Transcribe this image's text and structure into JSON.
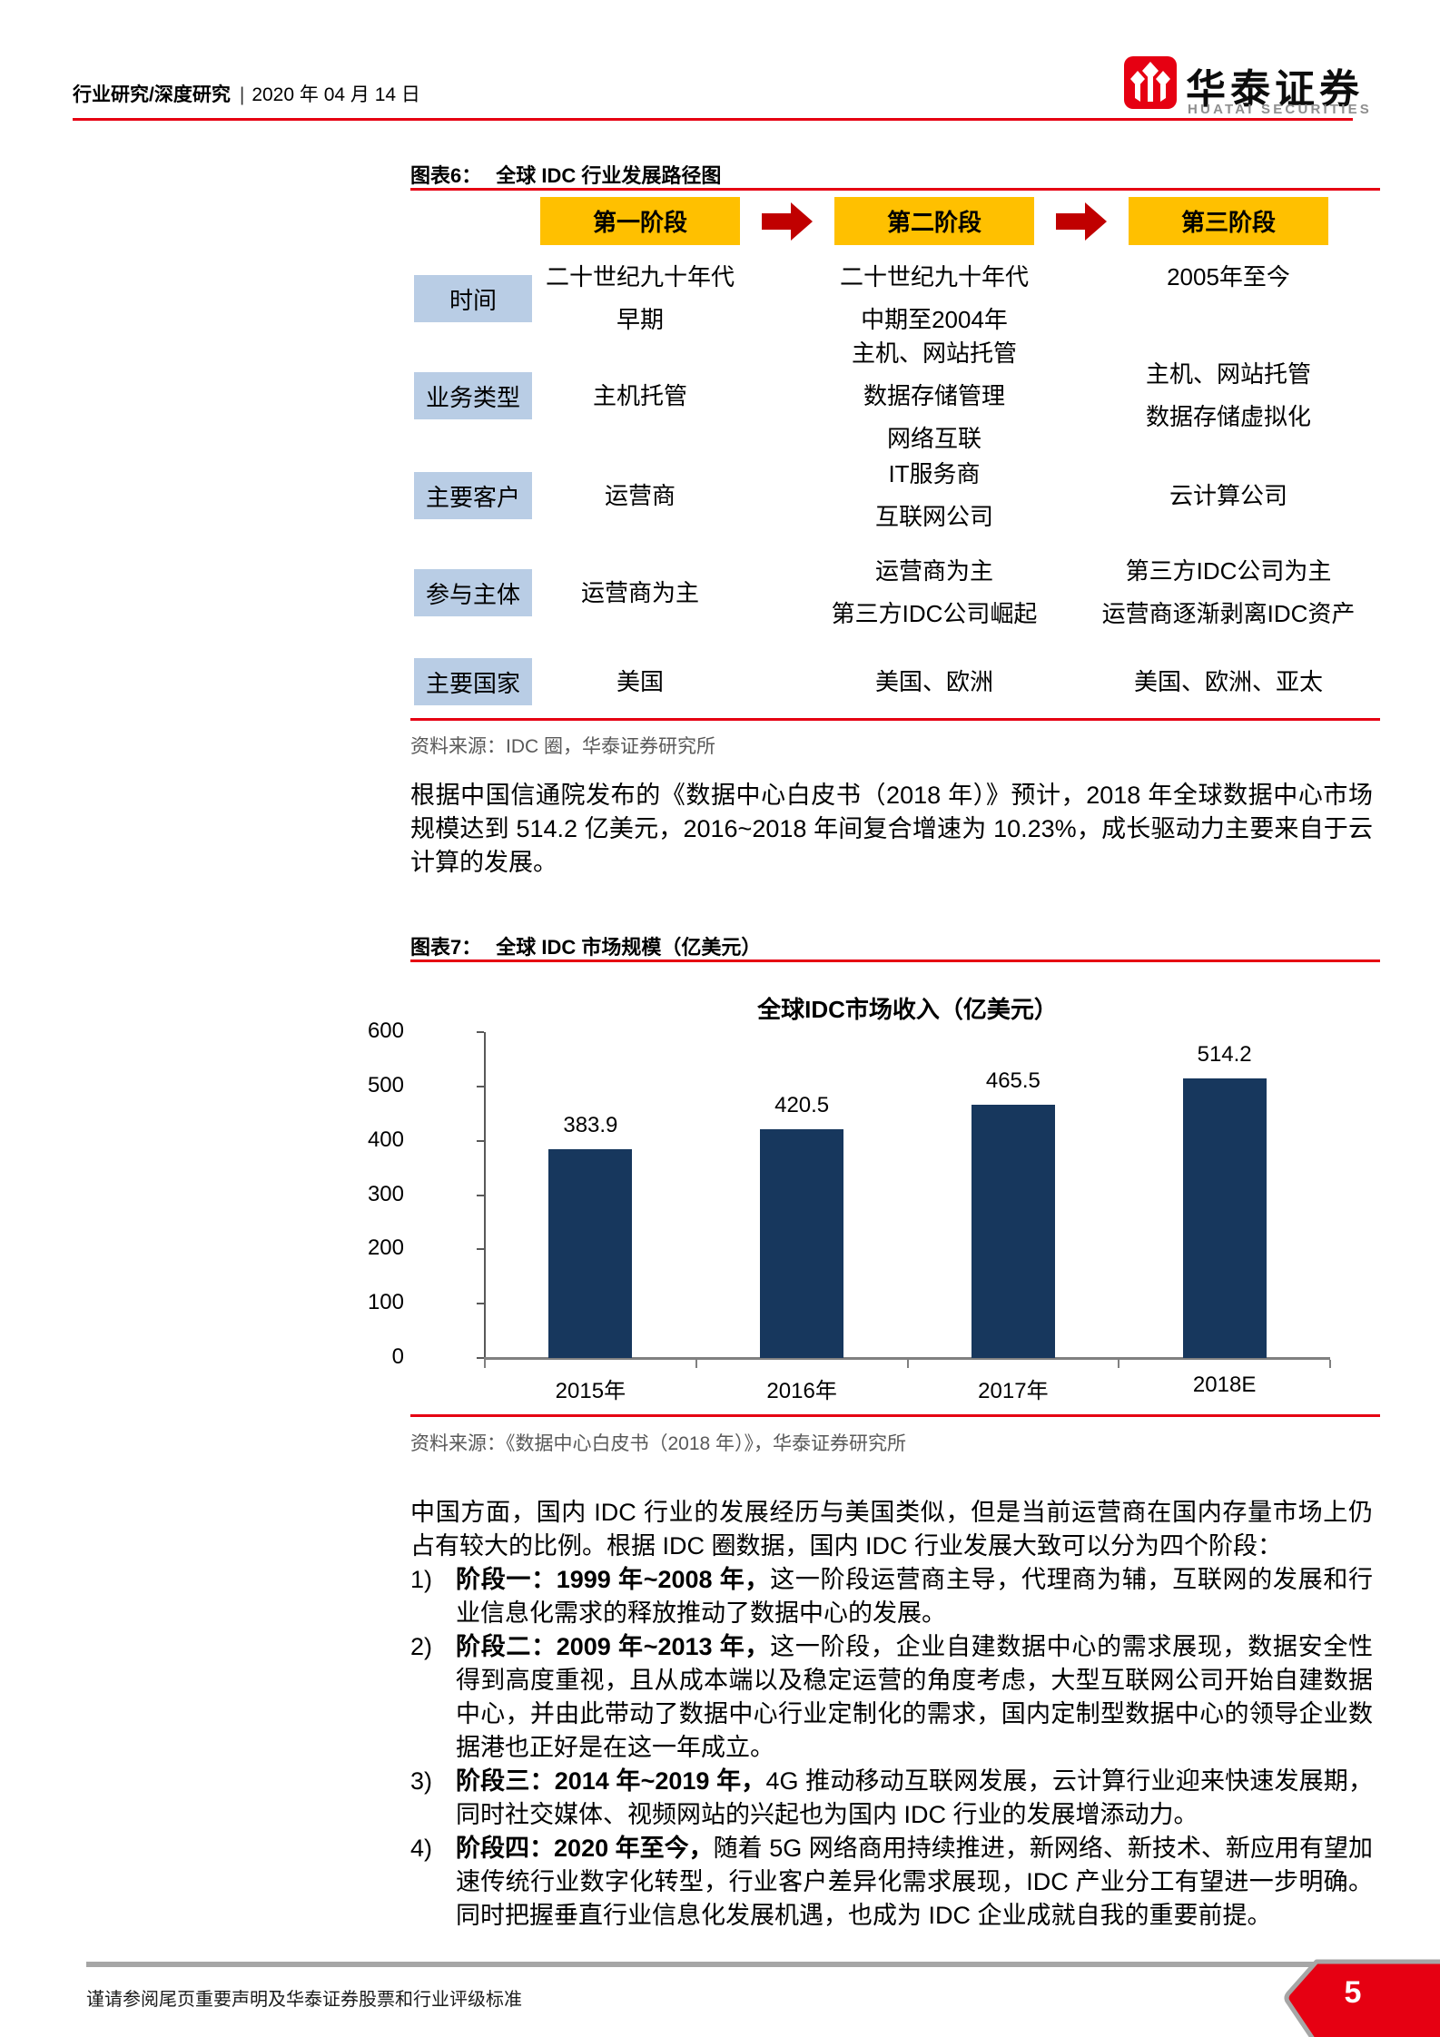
{
  "report": {
    "header": {
      "category": "行业研究/深度研究",
      "divider": "|",
      "date": "2020 年 04 月 14 日",
      "brand_cn": "华泰证券",
      "brand_en": "HUATAI SECURITIES"
    },
    "figure6": {
      "caption_label": "图表6：",
      "caption_title": "全球 IDC 行业发展路径图",
      "stages": [
        "第一阶段",
        "第二阶段",
        "第三阶段"
      ],
      "rows": [
        {
          "label": "时间",
          "cells": [
            [
              "二十世纪九十年代",
              "早期"
            ],
            [
              "二十世纪九十年代",
              "中期至2004年"
            ],
            [
              "2005年至今"
            ]
          ]
        },
        {
          "label": "业务类型",
          "cells": [
            [
              "主机托管"
            ],
            [
              "主机、网站托管",
              "数据存储管理",
              "网络互联"
            ],
            [
              "主机、网站托管",
              "数据存储虚拟化"
            ]
          ]
        },
        {
          "label": "主要客户",
          "cells": [
            [
              "运营商"
            ],
            [
              "IT服务商",
              "互联网公司"
            ],
            [
              "云计算公司"
            ]
          ]
        },
        {
          "label": "参与主体",
          "cells": [
            [
              "运营商为主"
            ],
            [
              "运营商为主",
              "第三方IDC公司崛起"
            ],
            [
              "第三方IDC公司为主",
              "运营商逐渐剥离IDC资产"
            ]
          ]
        },
        {
          "label": "主要国家",
          "cells": [
            [
              "美国"
            ],
            [
              "美国、欧洲"
            ],
            [
              "美国、欧洲、亚太"
            ]
          ]
        }
      ],
      "source": "资料来源：IDC 圈，华泰证券研究所"
    },
    "paragraph1": "根据中国信通院发布的《数据中心白皮书（2018 年）》预计，2018 年全球数据中心市场规模达到 514.2 亿美元，2016~2018 年间复合增速为 10.23%，成长驱动力主要来自于云计算的发展。",
    "figure7": {
      "caption_label": "图表7：",
      "caption_title": "全球 IDC 市场规模（亿美元）",
      "source": "资料来源：《数据中心白皮书（2018 年）》，华泰证券研究所"
    },
    "paragraph2": "中国方面，国内 IDC 行业的发展经历与美国类似，但是当前运营商在国内存量市场上仍占有较大的比例。根据 IDC 圈数据，国内 IDC 行业发展大致可以分为四个阶段：",
    "stages_list": [
      {
        "num": "1)",
        "lead": "阶段一：1999 年~2008 年，",
        "rest": "这一阶段运营商主导，代理商为辅，互联网的发展和行业信息化需求的释放推动了数据中心的发展。"
      },
      {
        "num": "2)",
        "lead": "阶段二：2009 年~2013 年，",
        "rest": "这一阶段，企业自建数据中心的需求展现，数据安全性得到高度重视，且从成本端以及稳定运营的角度考虑，大型互联网公司开始自建数据中心，并由此带动了数据中心行业定制化的需求，国内定制型数据中心的领导企业数据港也正好是在这一年成立。"
      },
      {
        "num": "3)",
        "lead": "阶段三：2014 年~2019 年，",
        "rest": "4G 推动移动互联网发展，云计算行业迎来快速发展期，同时社交媒体、视频网站的兴起也为国内 IDC 行业的发展增添动力。"
      },
      {
        "num": "4)",
        "lead": "阶段四：2020 年至今，",
        "rest": "随着 5G 网络商用持续推进，新网络、新技术、新应用有望加速传统行业数字化转型，行业客户差异化需求展现，IDC 产业分工有望进一步明确。同时把握垂直行业信息化发展机遇，也成为 IDC 企业成就自我的重要前提。"
      }
    ],
    "footer": {
      "disclaimer": "谨请参阅尾页重要声明及华泰证券股票和行业评级标准",
      "page_number": "5"
    }
  },
  "chart_data": {
    "type": "bar",
    "title": "全球IDC市场收入（亿美元）",
    "categories": [
      "2015年",
      "2016年",
      "2017年",
      "2018E"
    ],
    "values": [
      383.9,
      420.5,
      465.5,
      514.2
    ],
    "value_labels": [
      "383.9",
      "420.5",
      "465.5",
      "514.2"
    ],
    "ylim": [
      0,
      600
    ],
    "yticks": [
      0,
      100,
      200,
      300,
      400,
      500,
      600
    ],
    "xlabel": "",
    "ylabel": "",
    "grid": false,
    "legend": "none",
    "bar_color": "#17375d"
  },
  "colors": {
    "brand_red": "#e60012",
    "arrow_red": "#c00000",
    "stage_gold": "#ffc000",
    "label_blue": "#b9cde5",
    "bar_navy": "#17375d",
    "source_gray": "#595959",
    "footer_gray": "#a6a6a6"
  }
}
